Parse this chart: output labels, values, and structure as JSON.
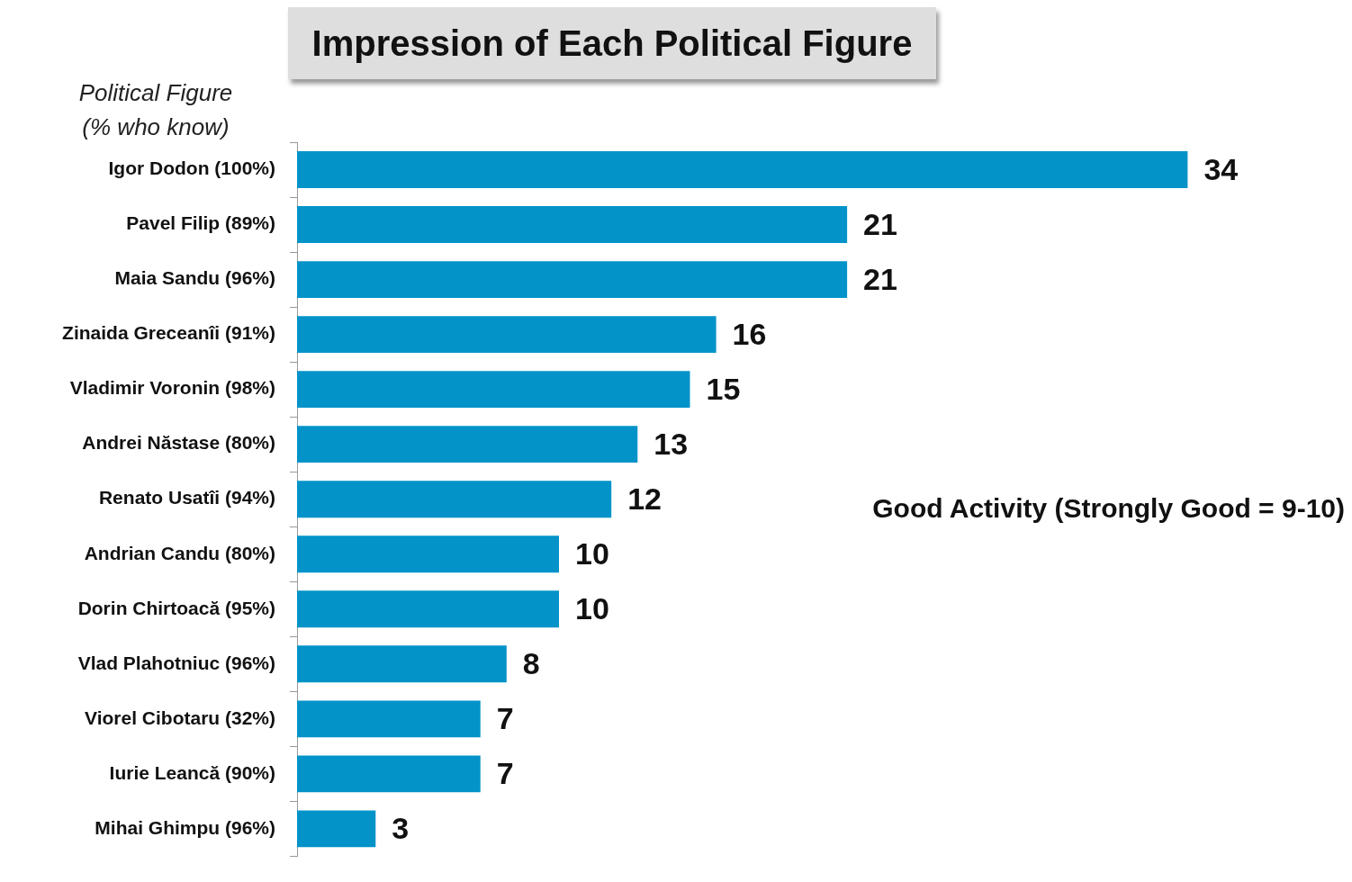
{
  "chart_data": {
    "type": "bar",
    "orientation": "horizontal",
    "title": "Impression of Each Political Figure",
    "ylabel": "Political Figure\n(% who know)",
    "categories": [
      "Igor Dodon (100%)",
      "Pavel Filip (89%)",
      "Maia Sandu (96%)",
      "Zinaida Greceanîi (91%)",
      "Vladimir Voronin (98%)",
      "Andrei Năstase (80%)",
      "Renato Usatîi (94%)",
      "Andrian Candu (80%)",
      "Dorin Chirtoacă (95%)",
      "Vlad Plahotniuc (96%)",
      "Viorel Cibotaru (32%)",
      "Iurie Leancă (90%)",
      "Mihai Ghimpu (96%)"
    ],
    "values": [
      34,
      21,
      21,
      16,
      15,
      13,
      12,
      10,
      10,
      8,
      7,
      7,
      3
    ],
    "color": "#0393c9",
    "tick_labels": "y",
    "legend": false,
    "data_labels": true,
    "annotations": [
      "Good Activity (Strongly Good = 9-10)"
    ]
  }
}
